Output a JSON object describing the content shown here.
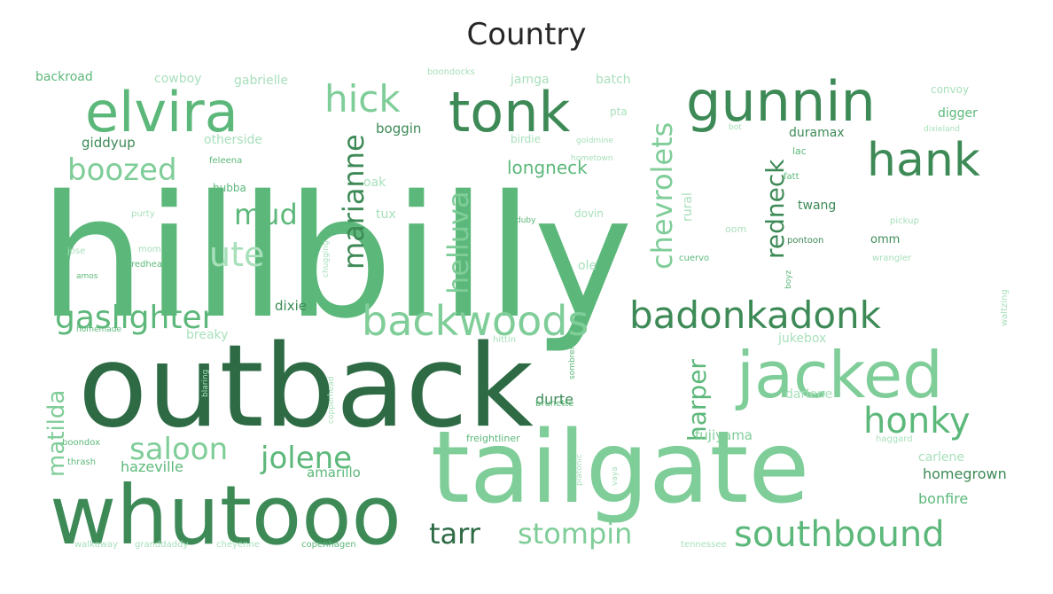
{
  "title": "Country",
  "palette": {
    "darkest": "#2e6b45",
    "dark": "#3d8a57",
    "medium": "#5cb87a",
    "light": "#7fcd98",
    "pale": "#a8e0bb"
  },
  "words": [
    {
      "text": "hillbilly",
      "weight": 100,
      "tone": "medium"
    },
    {
      "text": "outback",
      "weight": 82,
      "tone": "darkest"
    },
    {
      "text": "tailgate",
      "weight": 78,
      "tone": "light"
    },
    {
      "text": "whutooo",
      "weight": 62,
      "tone": "dark"
    },
    {
      "text": "elvira",
      "weight": 48,
      "tone": "medium"
    },
    {
      "text": "tonk",
      "weight": 48,
      "tone": "dark"
    },
    {
      "text": "gunnin",
      "weight": 48,
      "tone": "dark"
    },
    {
      "text": "jacked",
      "weight": 52,
      "tone": "light"
    },
    {
      "text": "hank",
      "weight": 40,
      "tone": "dark"
    },
    {
      "text": "backwoods",
      "weight": 38,
      "tone": "light"
    },
    {
      "text": "badonkadonk",
      "weight": 36,
      "tone": "dark"
    },
    {
      "text": "southbound",
      "weight": 36,
      "tone": "medium"
    },
    {
      "text": "honky",
      "weight": 34,
      "tone": "medium"
    },
    {
      "text": "hick",
      "weight": 36,
      "tone": "light"
    },
    {
      "text": "gaslighter",
      "weight": 32,
      "tone": "medium"
    },
    {
      "text": "boozed",
      "weight": 30,
      "tone": "light"
    },
    {
      "text": "jolene",
      "weight": 30,
      "tone": "medium"
    },
    {
      "text": "saloon",
      "weight": 30,
      "tone": "light"
    },
    {
      "text": "stompin",
      "weight": 30,
      "tone": "light"
    },
    {
      "text": "tarr",
      "weight": 30,
      "tone": "darkest"
    },
    {
      "text": "ute",
      "weight": 30,
      "tone": "pale"
    },
    {
      "text": "mud",
      "weight": 28,
      "tone": "medium"
    },
    {
      "text": "marianne",
      "weight": 28,
      "tone": "dark"
    },
    {
      "text": "helluva",
      "weight": 28,
      "tone": "light"
    },
    {
      "text": "chevrolets",
      "weight": 28,
      "tone": "light"
    },
    {
      "text": "redneck",
      "weight": 24,
      "tone": "dark"
    },
    {
      "text": "harper",
      "weight": 24,
      "tone": "medium"
    },
    {
      "text": "matilda",
      "weight": 22,
      "tone": "light"
    },
    {
      "text": "longneck",
      "weight": 18,
      "tone": "medium"
    },
    {
      "text": "fujiyama",
      "weight": 14,
      "tone": "light"
    },
    {
      "text": "homegrown",
      "weight": 14,
      "tone": "dark"
    },
    {
      "text": "bonfire",
      "weight": 14,
      "tone": "medium"
    },
    {
      "text": "hazeville",
      "weight": 14,
      "tone": "medium"
    },
    {
      "text": "amarillo",
      "weight": 13,
      "tone": "medium"
    },
    {
      "text": "durte",
      "weight": 14,
      "tone": "dark"
    },
    {
      "text": "dixie",
      "weight": 13,
      "tone": "dark"
    },
    {
      "text": "boggin",
      "weight": 13,
      "tone": "dark"
    },
    {
      "text": "giddyup",
      "weight": 13,
      "tone": "dark"
    },
    {
      "text": "otherside",
      "weight": 12,
      "tone": "pale"
    },
    {
      "text": "duramax",
      "weight": 12,
      "tone": "dark"
    },
    {
      "text": "twang",
      "weight": 12,
      "tone": "dark"
    },
    {
      "text": "digger",
      "weight": 12,
      "tone": "medium"
    },
    {
      "text": "carlene",
      "weight": 12,
      "tone": "pale"
    },
    {
      "text": "jukebox",
      "weight": 12,
      "tone": "pale"
    },
    {
      "text": "darlene",
      "weight": 12,
      "tone": "pale"
    },
    {
      "text": "breaky",
      "weight": 12,
      "tone": "pale"
    },
    {
      "text": "backroad",
      "weight": 12,
      "tone": "medium"
    },
    {
      "text": "cowboy",
      "weight": 12,
      "tone": "pale"
    },
    {
      "text": "gabrielle",
      "weight": 12,
      "tone": "pale"
    },
    {
      "text": "jamga",
      "weight": 12,
      "tone": "pale"
    },
    {
      "text": "batch",
      "weight": 12,
      "tone": "pale"
    },
    {
      "text": "convoy",
      "weight": 11,
      "tone": "pale"
    },
    {
      "text": "boondocks",
      "weight": 9,
      "tone": "pale"
    },
    {
      "text": "pta",
      "weight": 11,
      "tone": "pale"
    },
    {
      "text": "birdie",
      "weight": 11,
      "tone": "pale"
    },
    {
      "text": "goldmine",
      "weight": 8,
      "tone": "pale"
    },
    {
      "text": "oak",
      "weight": 12,
      "tone": "pale"
    },
    {
      "text": "tux",
      "weight": 12,
      "tone": "pale"
    },
    {
      "text": "ole",
      "weight": 12,
      "tone": "pale"
    },
    {
      "text": "dovin",
      "weight": 10,
      "tone": "pale"
    },
    {
      "text": "omm",
      "weight": 11,
      "tone": "dark"
    },
    {
      "text": "pontoon",
      "weight": 9,
      "tone": "dark"
    },
    {
      "text": "rural",
      "weight": 12,
      "tone": "pale"
    },
    {
      "text": "lac",
      "weight": 10,
      "tone": "medium"
    },
    {
      "text": "fatt",
      "weight": 9,
      "tone": "medium"
    },
    {
      "text": "bubba",
      "weight": 10,
      "tone": "medium"
    },
    {
      "text": "feleena",
      "weight": 9,
      "tone": "medium"
    },
    {
      "text": "purty",
      "weight": 9,
      "tone": "pale"
    },
    {
      "text": "jose",
      "weight": 9,
      "tone": "pale"
    },
    {
      "text": "mom",
      "weight": 9,
      "tone": "pale"
    },
    {
      "text": "amos",
      "weight": 8,
      "tone": "medium"
    },
    {
      "text": "redhead",
      "weight": 9,
      "tone": "medium"
    },
    {
      "text": "chugging",
      "weight": 8,
      "tone": "pale"
    },
    {
      "text": "homemade",
      "weight": 8,
      "tone": "medium"
    },
    {
      "text": "hittin",
      "weight": 9,
      "tone": "pale"
    },
    {
      "text": "sombrero",
      "weight": 8,
      "tone": "medium"
    },
    {
      "text": "brunette",
      "weight": 9,
      "tone": "medium"
    },
    {
      "text": "freightliner",
      "weight": 10,
      "tone": "medium"
    },
    {
      "text": "platonic",
      "weight": 8,
      "tone": "pale"
    },
    {
      "text": "vaya",
      "weight": 8,
      "tone": "pale"
    },
    {
      "text": "haggard",
      "weight": 9,
      "tone": "pale"
    },
    {
      "text": "boondox",
      "weight": 9,
      "tone": "medium"
    },
    {
      "text": "thrash",
      "weight": 9,
      "tone": "medium"
    },
    {
      "text": "walkaway",
      "weight": 9,
      "tone": "pale"
    },
    {
      "text": "granddaddy",
      "weight": 9,
      "tone": "pale"
    },
    {
      "text": "cheyenne",
      "weight": 9,
      "tone": "pale"
    },
    {
      "text": "copenhagen",
      "weight": 9,
      "tone": "medium"
    },
    {
      "text": "tennessee",
      "weight": 9,
      "tone": "pale"
    },
    {
      "text": "waltzing",
      "weight": 9,
      "tone": "pale"
    },
    {
      "text": "wrangler",
      "weight": 9,
      "tone": "pale"
    },
    {
      "text": "pickup",
      "weight": 9,
      "tone": "pale"
    },
    {
      "text": "boyz",
      "weight": 8,
      "tone": "medium"
    },
    {
      "text": "cuervo",
      "weight": 9,
      "tone": "medium"
    },
    {
      "text": "duby",
      "weight": 8,
      "tone": "medium"
    },
    {
      "text": "oom",
      "weight": 10,
      "tone": "pale"
    },
    {
      "text": "dixieland",
      "weight": 8,
      "tone": "pale"
    },
    {
      "text": "bot",
      "weight": 8,
      "tone": "pale"
    },
    {
      "text": "hometown",
      "weight": 8,
      "tone": "pale"
    },
    {
      "text": "blaring",
      "weight": 8,
      "tone": "pale"
    },
    {
      "text": "copperhead",
      "weight": 8,
      "tone": "pale"
    }
  ]
}
